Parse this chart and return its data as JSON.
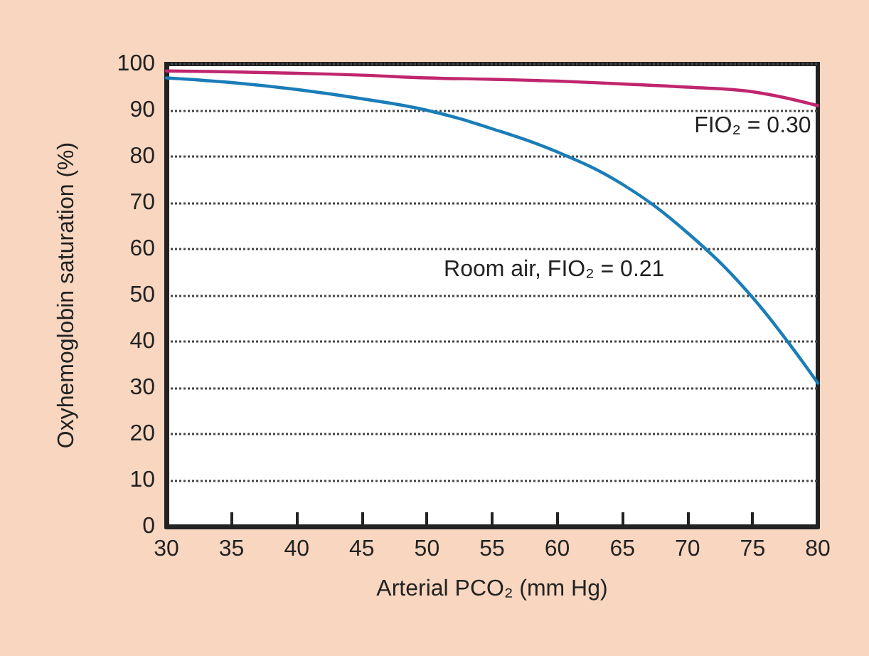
{
  "chart_data": {
    "type": "line",
    "xlabel": "Arterial PCO₂ (mm Hg)",
    "ylabel": "Oxyhemoglobin saturation (%)",
    "x": [
      30,
      35,
      40,
      45,
      50,
      55,
      60,
      65,
      70,
      75,
      80
    ],
    "series": [
      {
        "name": "FIO₂ = 0.30",
        "color": "#c0266e",
        "values": [
          98.5,
          98.3,
          98,
          97.6,
          97,
          96.7,
          96.3,
          95.7,
          95,
          94,
          91
        ]
      },
      {
        "name": "Room air, FIO₂ = 0.21",
        "color": "#1a7db8",
        "values": [
          97,
          96,
          94.5,
          92.5,
          90,
          86,
          81,
          74,
          63.5,
          49.5,
          31
        ]
      }
    ],
    "xlim": [
      30,
      80
    ],
    "xticks": [
      30,
      35,
      40,
      45,
      50,
      55,
      60,
      65,
      70,
      75,
      80
    ],
    "ylim": [
      0,
      100
    ],
    "yticks": [
      0,
      10,
      20,
      30,
      40,
      50,
      60,
      70,
      80,
      90,
      100
    ],
    "grid": "y",
    "marker": "none",
    "line_style": "solid"
  }
}
